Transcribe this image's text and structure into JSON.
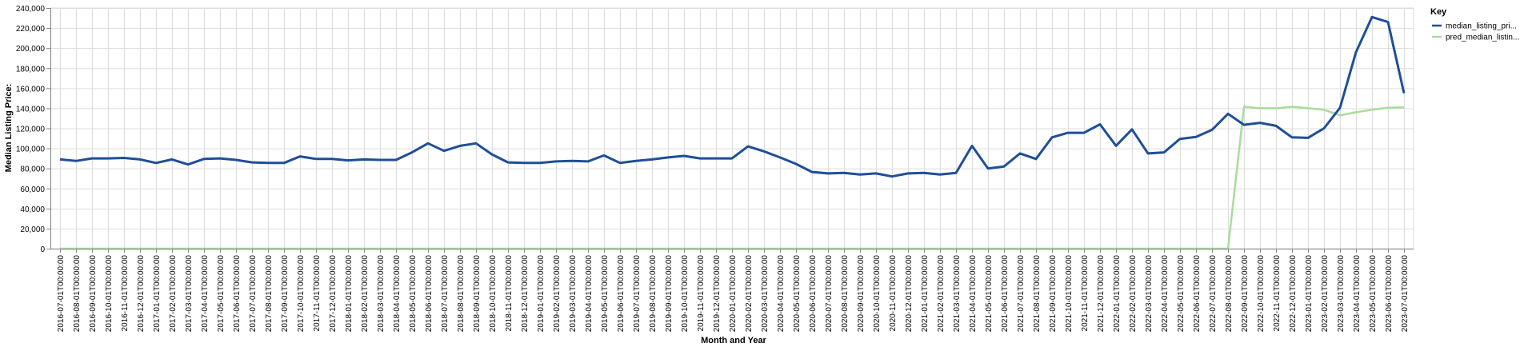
{
  "chart_data": {
    "type": "line",
    "xlabel": "Month and Year",
    "ylabel": "Median Listing Price:",
    "ylim": [
      0,
      240000
    ],
    "yticks": [
      0,
      20000,
      40000,
      60000,
      80000,
      100000,
      120000,
      140000,
      160000,
      180000,
      200000,
      220000,
      240000
    ],
    "ytick_labels": [
      "0",
      "20,000",
      "40,000",
      "60,000",
      "80,000",
      "100,000",
      "120,000",
      "140,000",
      "160,000",
      "180,000",
      "200,000",
      "220,000",
      "240,000"
    ],
    "grid": true,
    "legend": {
      "title": "Key",
      "placement": "right"
    },
    "x": [
      "2016-07-01T00:00:00",
      "2016-08-01T00:00:00",
      "2016-09-01T00:00:00",
      "2016-10-01T00:00:00",
      "2016-11-01T00:00:00",
      "2016-12-01T00:00:00",
      "2017-01-01T00:00:00",
      "2017-02-01T00:00:00",
      "2017-03-01T00:00:00",
      "2017-04-01T00:00:00",
      "2017-05-01T00:00:00",
      "2017-06-01T00:00:00",
      "2017-07-01T00:00:00",
      "2017-08-01T00:00:00",
      "2017-09-01T00:00:00",
      "2017-10-01T00:00:00",
      "2017-11-01T00:00:00",
      "2017-12-01T00:00:00",
      "2018-01-01T00:00:00",
      "2018-02-01T00:00:00",
      "2018-03-01T00:00:00",
      "2018-04-01T00:00:00",
      "2018-05-01T00:00:00",
      "2018-06-01T00:00:00",
      "2018-07-01T00:00:00",
      "2018-08-01T00:00:00",
      "2018-09-01T00:00:00",
      "2018-10-01T00:00:00",
      "2018-11-01T00:00:00",
      "2018-12-01T00:00:00",
      "2019-01-01T00:00:00",
      "2019-02-01T00:00:00",
      "2019-03-01T00:00:00",
      "2019-04-01T00:00:00",
      "2019-05-01T00:00:00",
      "2019-06-01T00:00:00",
      "2019-07-01T00:00:00",
      "2019-08-01T00:00:00",
      "2019-09-01T00:00:00",
      "2019-10-01T00:00:00",
      "2019-11-01T00:00:00",
      "2019-12-01T00:00:00",
      "2020-01-01T00:00:00",
      "2020-02-01T00:00:00",
      "2020-03-01T00:00:00",
      "2020-04-01T00:00:00",
      "2020-05-01T00:00:00",
      "2020-06-01T00:00:00",
      "2020-07-01T00:00:00",
      "2020-08-01T00:00:00",
      "2020-09-01T00:00:00",
      "2020-10-01T00:00:00",
      "2020-11-01T00:00:00",
      "2020-12-01T00:00:00",
      "2021-01-01T00:00:00",
      "2021-02-01T00:00:00",
      "2021-03-01T00:00:00",
      "2021-04-01T00:00:00",
      "2021-05-01T00:00:00",
      "2021-06-01T00:00:00",
      "2021-07-01T00:00:00",
      "2021-08-01T00:00:00",
      "2021-09-01T00:00:00",
      "2021-10-01T00:00:00",
      "2021-11-01T00:00:00",
      "2021-12-01T00:00:00",
      "2022-01-01T00:00:00",
      "2022-02-01T00:00:00",
      "2022-03-01T00:00:00",
      "2022-04-01T00:00:00",
      "2022-05-01T00:00:00",
      "2022-06-01T00:00:00",
      "2022-07-01T00:00:00",
      "2022-08-01T00:00:00",
      "2022-09-01T00:00:00",
      "2022-10-01T00:00:00",
      "2022-11-01T00:00:00",
      "2022-12-01T00:00:00",
      "2023-01-01T00:00:00",
      "2023-02-01T00:00:00",
      "2023-03-01T00:00:00",
      "2023-04-01T00:00:00",
      "2023-05-01T00:00:00",
      "2023-06-01T00:00:00",
      "2023-07-01T00:00:00"
    ],
    "series": [
      {
        "name": "median_listing_pri...",
        "color": "#1f4e99",
        "values": [
          89000,
          87500,
          90000,
          90000,
          90500,
          89000,
          85500,
          89000,
          84000,
          89500,
          90000,
          88500,
          86000,
          85500,
          85500,
          92000,
          89500,
          89500,
          88000,
          89000,
          88500,
          88500,
          96000,
          105000,
          97500,
          102500,
          105000,
          94000,
          86000,
          85500,
          85500,
          87000,
          87500,
          87000,
          93000,
          85500,
          87500,
          89000,
          91000,
          92500,
          90000,
          90000,
          90000,
          102000,
          97000,
          91000,
          84500,
          76500,
          75000,
          75500,
          74000,
          75000,
          72000,
          75000,
          75500,
          74000,
          75500,
          102500,
          80000,
          82000,
          95000,
          89500,
          111000,
          115500,
          115500,
          124000,
          102500,
          119000,
          95000,
          96000,
          109500,
          111500,
          118500,
          134500,
          123500,
          125500,
          122500,
          111000,
          110500,
          120000,
          140500,
          196000,
          231000,
          226000,
          155000
        ]
      },
      {
        "name": "pred_median_listin...",
        "color": "#a8dc9c",
        "values": [
          0,
          0,
          0,
          0,
          0,
          0,
          0,
          0,
          0,
          0,
          0,
          0,
          0,
          0,
          0,
          0,
          0,
          0,
          0,
          0,
          0,
          0,
          0,
          0,
          0,
          0,
          0,
          0,
          0,
          0,
          0,
          0,
          0,
          0,
          0,
          0,
          0,
          0,
          0,
          0,
          0,
          0,
          0,
          0,
          0,
          0,
          0,
          0,
          0,
          0,
          0,
          0,
          0,
          0,
          0,
          0,
          0,
          0,
          0,
          0,
          0,
          0,
          0,
          0,
          0,
          0,
          0,
          0,
          0,
          0,
          0,
          0,
          0,
          0,
          141500,
          140000,
          140000,
          141500,
          140000,
          138500,
          133000,
          136000,
          138500,
          140500,
          141000
        ]
      }
    ]
  }
}
